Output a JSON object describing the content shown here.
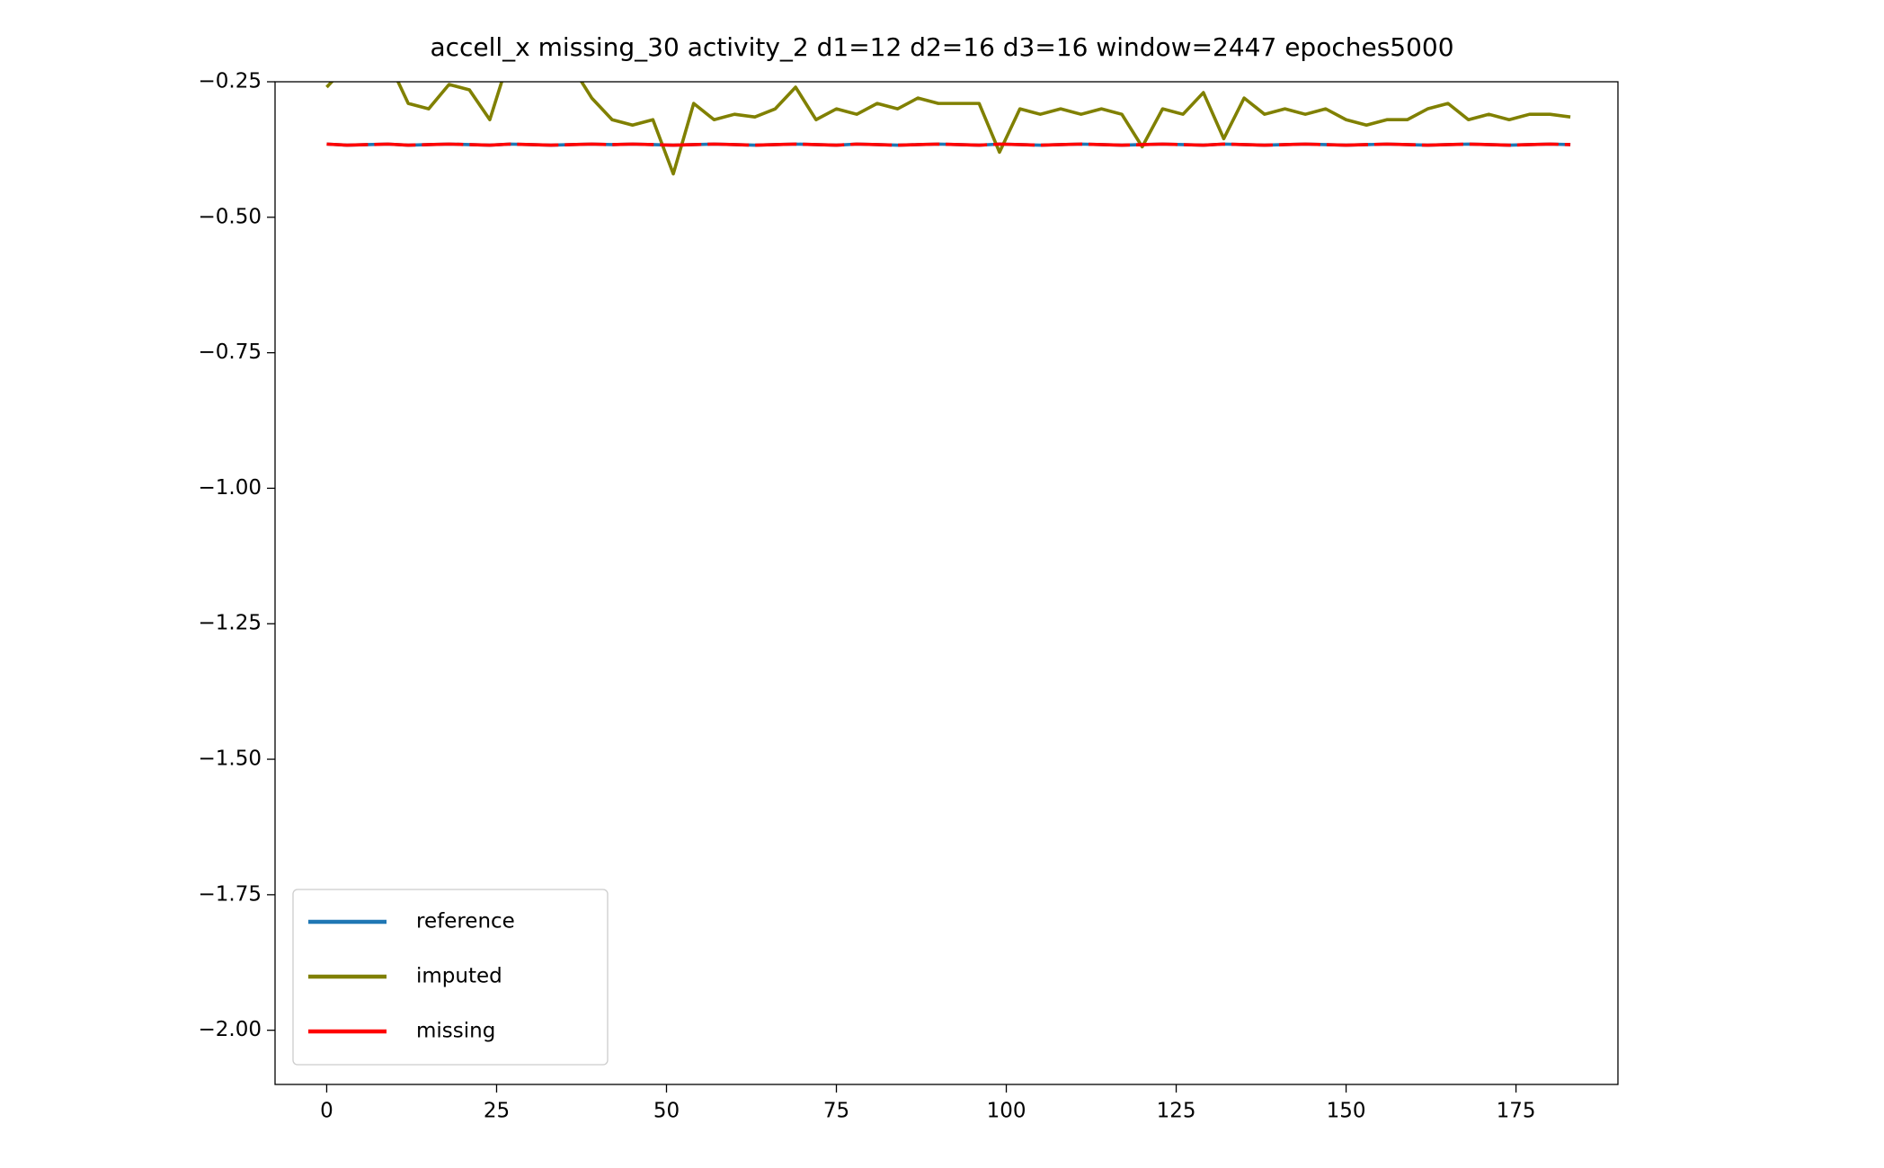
{
  "chart_data": {
    "type": "line",
    "title": "accell_x missing_30 activity_2 d1=12 d2=16 d3=16 window=2447 epoches5000",
    "x": [
      0,
      3,
      6,
      9,
      12,
      15,
      18,
      21,
      24,
      27,
      30,
      33,
      36,
      39,
      42,
      45,
      48,
      51,
      54,
      57,
      60,
      63,
      66,
      69,
      72,
      75,
      78,
      81,
      84,
      87,
      90,
      93,
      96,
      99,
      102,
      105,
      108,
      111,
      114,
      117,
      120,
      123,
      126,
      129,
      132,
      135,
      138,
      141,
      144,
      147,
      150,
      153,
      156,
      159,
      162,
      165,
      168,
      171,
      174,
      177,
      180,
      183
    ],
    "series": [
      {
        "name": "reference",
        "color": "#1f77b4",
        "values": [
          -0.365,
          -0.367,
          -0.366,
          -0.365,
          -0.367,
          -0.366,
          -0.365,
          -0.366,
          -0.367,
          -0.365,
          -0.366,
          -0.367,
          -0.366,
          -0.365,
          -0.366,
          -0.365,
          -0.366,
          -0.367,
          -0.366,
          -0.365,
          -0.366,
          -0.367,
          -0.366,
          -0.365,
          -0.366,
          -0.367,
          -0.365,
          -0.366,
          -0.367,
          -0.366,
          -0.365,
          -0.366,
          -0.367,
          -0.365,
          -0.366,
          -0.367,
          -0.366,
          -0.365,
          -0.366,
          -0.367,
          -0.366,
          -0.365,
          -0.366,
          -0.367,
          -0.365,
          -0.366,
          -0.367,
          -0.366,
          -0.365,
          -0.366,
          -0.367,
          -0.366,
          -0.365,
          -0.366,
          -0.367,
          -0.366,
          -0.365,
          -0.366,
          -0.367,
          -0.366,
          -0.365,
          -0.366
        ]
      },
      {
        "name": "imputed",
        "color": "#808000",
        "values": [
          -0.26,
          -0.22,
          -0.2,
          -0.21,
          -0.29,
          -0.3,
          -0.255,
          -0.265,
          -0.32,
          -0.2,
          -0.21,
          -0.19,
          -0.22,
          -0.28,
          -0.32,
          -0.33,
          -0.32,
          -0.42,
          -0.29,
          -0.32,
          -0.31,
          -0.315,
          -0.3,
          -0.26,
          -0.32,
          -0.3,
          -0.31,
          -0.29,
          -0.3,
          -0.28,
          -0.29,
          -0.29,
          -0.29,
          -0.38,
          -0.3,
          -0.31,
          -0.3,
          -0.31,
          -0.3,
          -0.31,
          -0.37,
          -0.3,
          -0.31,
          -0.27,
          -0.355,
          -0.28,
          -0.31,
          -0.3,
          -0.31,
          -0.3,
          -0.32,
          -0.33,
          -0.32,
          -0.32,
          -0.3,
          -0.29,
          -0.32,
          -0.31,
          -0.32,
          -0.31,
          -0.31,
          -0.315
        ]
      },
      {
        "name": "missing",
        "color": "#ff0000",
        "values": [
          -0.365,
          -0.367,
          -0.366,
          -0.365,
          -0.367,
          -0.366,
          -0.365,
          -0.366,
          -0.367,
          -0.365,
          -0.366,
          -0.367,
          -0.366,
          -0.365,
          -0.366,
          -0.365,
          -0.366,
          -0.367,
          -0.366,
          -0.365,
          -0.366,
          -0.367,
          -0.366,
          -0.365,
          -0.366,
          -0.367,
          -0.365,
          -0.366,
          -0.367,
          -0.366,
          -0.365,
          -0.366,
          -0.367,
          -0.365,
          -0.366,
          -0.367,
          -0.366,
          -0.365,
          -0.366,
          -0.367,
          -0.366,
          -0.365,
          -0.366,
          -0.367,
          -0.365,
          -0.366,
          -0.367,
          -0.366,
          -0.365,
          -0.366,
          -0.367,
          -0.366,
          -0.365,
          -0.366,
          -0.367,
          -0.366,
          -0.365,
          -0.366,
          -0.367,
          -0.366,
          -0.365,
          -0.366
        ]
      }
    ],
    "xlim": [
      -7.6,
      190
    ],
    "ylim": [
      -2.1,
      -0.25
    ],
    "xticks": [
      0,
      25,
      50,
      75,
      100,
      125,
      150,
      175
    ],
    "yticks": [
      {
        "value": -0.25,
        "label": "−0.25"
      },
      {
        "value": -0.5,
        "label": "−0.50"
      },
      {
        "value": -0.75,
        "label": "−0.75"
      },
      {
        "value": -1.0,
        "label": "−1.00"
      },
      {
        "value": -1.25,
        "label": "−1.25"
      },
      {
        "value": -1.5,
        "label": "−1.50"
      },
      {
        "value": -1.75,
        "label": "−1.75"
      },
      {
        "value": -2.0,
        "label": "−2.00"
      }
    ],
    "grid": false,
    "legend": "lower left"
  }
}
